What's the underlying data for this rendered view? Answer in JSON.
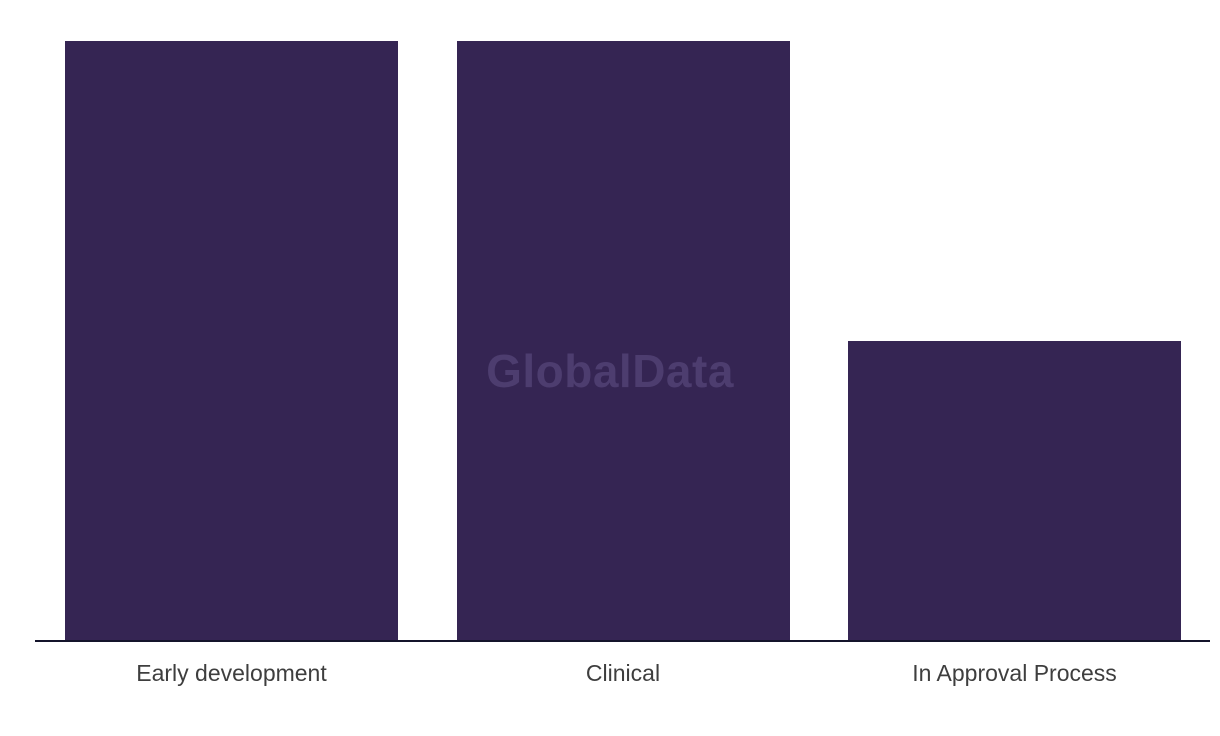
{
  "chart_data": {
    "type": "bar",
    "title": "",
    "xlabel": "",
    "ylabel": "",
    "categories": [
      "Early development",
      "Clinical",
      "In Approval Process"
    ],
    "values": [
      100,
      100,
      50
    ],
    "value_note": "No y-axis, gridlines or data labels are visible; values are relative bar heights as percent of the tallest bar (first two bars equal height, third bar half height)",
    "axis_range_shown": false,
    "grid": false,
    "legend": false,
    "colors": {
      "bar": "#352553",
      "axis_line": "#14142b",
      "label_text": "#3e3e3e",
      "background": "#ffffff"
    }
  },
  "watermark": {
    "text": "GlobalData",
    "color": "#4d3d6f"
  }
}
